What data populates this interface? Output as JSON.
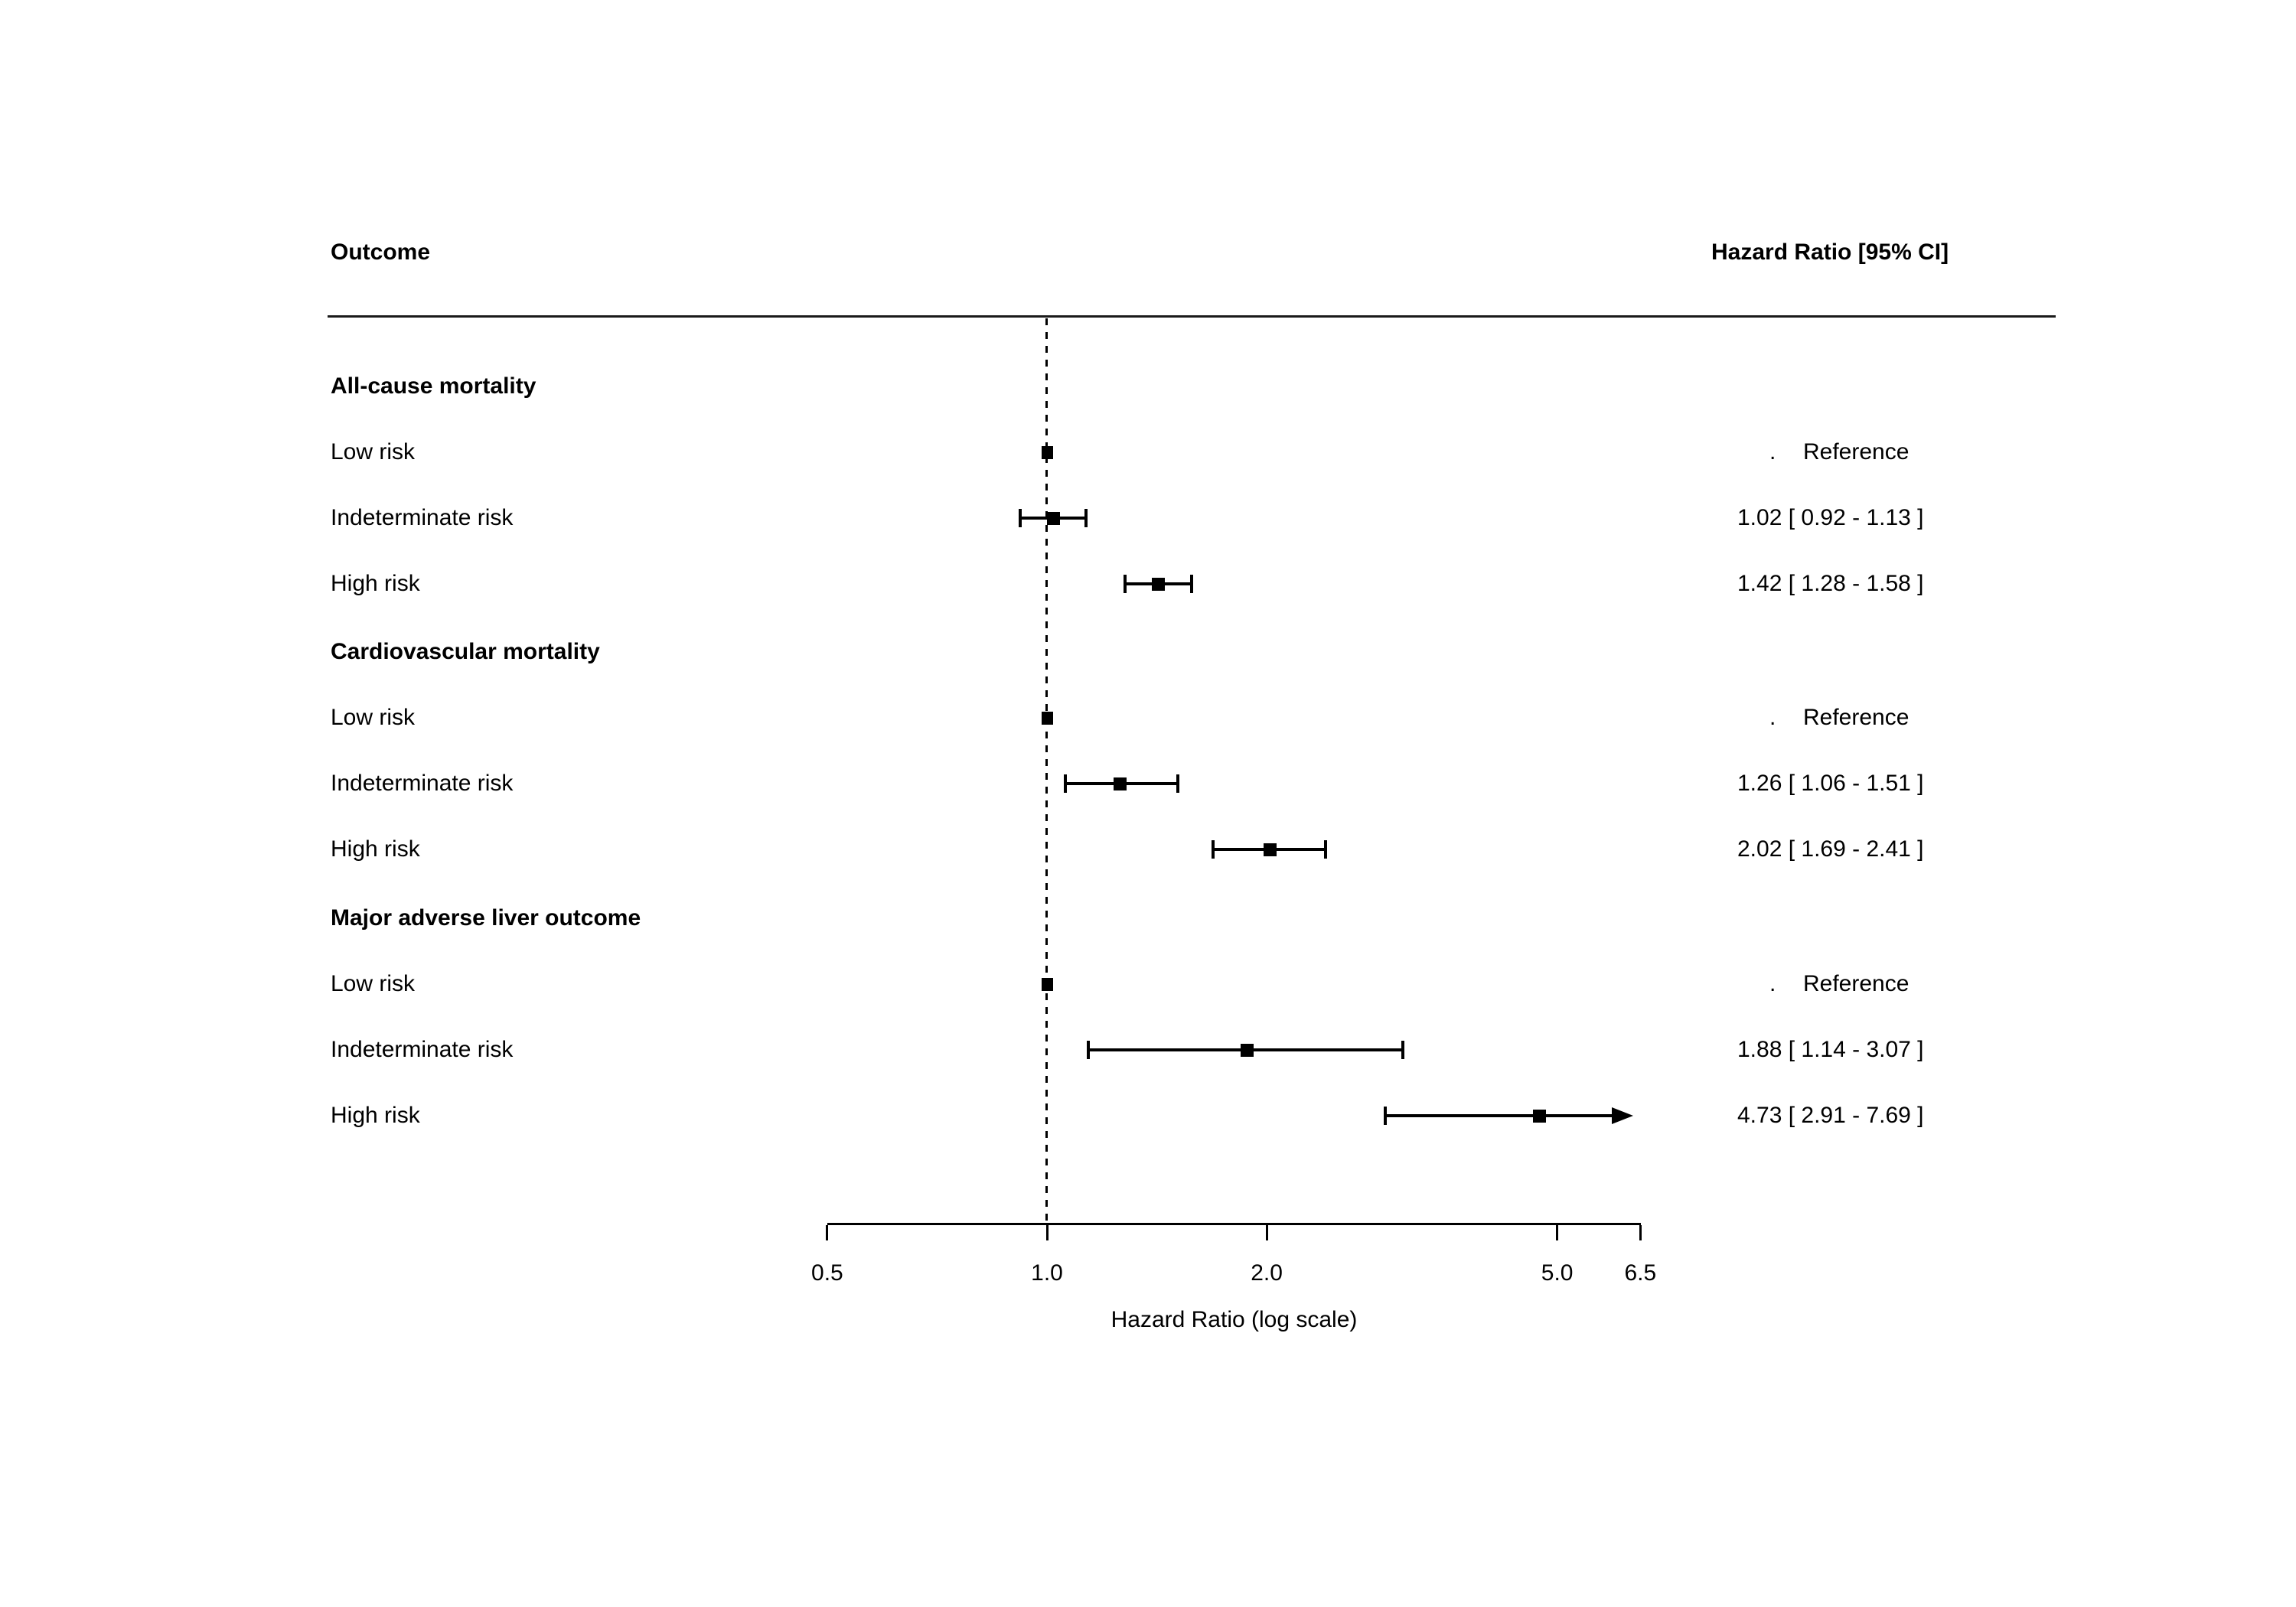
{
  "colors": {
    "ink": "#000000",
    "rule": "#1a1a1a",
    "background": "#ffffff"
  },
  "header": {
    "outcome_col": "Outcome",
    "hr_col": "Hazard Ratio [95% CI]"
  },
  "annotations": {
    "reference_dot": "."
  },
  "axis": {
    "ticks": [
      0.5,
      1.0,
      2.0,
      5.0,
      6.5
    ],
    "tick_labels": [
      "0.5",
      "1.0",
      "2.0",
      "5.0",
      "6.5"
    ],
    "title": "Hazard Ratio (log scale)"
  },
  "chart_data": {
    "type": "forest",
    "xlabel": "Hazard Ratio (log scale)",
    "x_scale": "log",
    "xlim": [
      0.5,
      6.5
    ],
    "reference_line": 1.0,
    "x_ticks": [
      0.5,
      1.0,
      2.0,
      5.0,
      6.5
    ],
    "columns": {
      "left": "Outcome",
      "right": "Hazard Ratio [95% CI]"
    },
    "groups": [
      {
        "label": "All-cause mortality",
        "rows": [
          {
            "label": "Low risk",
            "est": 1.0,
            "lo": 1.0,
            "hi": 1.0,
            "annotation": "Reference",
            "is_reference": true,
            "clipped_hi": false
          },
          {
            "label": "Indeterminate risk",
            "est": 1.02,
            "lo": 0.92,
            "hi": 1.13,
            "annotation": "1.02 [ 0.92 - 1.13 ]",
            "is_reference": false,
            "clipped_hi": false
          },
          {
            "label": "High risk",
            "est": 1.42,
            "lo": 1.28,
            "hi": 1.58,
            "annotation": "1.42 [ 1.28 - 1.58 ]",
            "is_reference": false,
            "clipped_hi": false
          }
        ]
      },
      {
        "label": "Cardiovascular mortality",
        "rows": [
          {
            "label": "Low risk",
            "est": 1.0,
            "lo": 1.0,
            "hi": 1.0,
            "annotation": "Reference",
            "is_reference": true,
            "clipped_hi": false
          },
          {
            "label": "Indeterminate risk",
            "est": 1.26,
            "lo": 1.06,
            "hi": 1.51,
            "annotation": "1.26 [ 1.06 - 1.51 ]",
            "is_reference": false,
            "clipped_hi": false
          },
          {
            "label": "High risk",
            "est": 2.02,
            "lo": 1.69,
            "hi": 2.41,
            "annotation": "2.02 [ 1.69 - 2.41 ]",
            "is_reference": false,
            "clipped_hi": false
          }
        ]
      },
      {
        "label": "Major adverse liver outcome",
        "rows": [
          {
            "label": "Low risk",
            "est": 1.0,
            "lo": 1.0,
            "hi": 1.0,
            "annotation": "Reference",
            "is_reference": true,
            "clipped_hi": false
          },
          {
            "label": "Indeterminate risk",
            "est": 1.88,
            "lo": 1.14,
            "hi": 3.07,
            "annotation": "1.88 [ 1.14 - 3.07 ]",
            "is_reference": false,
            "clipped_hi": false
          },
          {
            "label": "High risk",
            "est": 4.73,
            "lo": 2.91,
            "hi": 7.69,
            "annotation": "4.73 [ 2.91 - 7.69 ]",
            "is_reference": false,
            "clipped_hi": true
          }
        ]
      }
    ]
  }
}
